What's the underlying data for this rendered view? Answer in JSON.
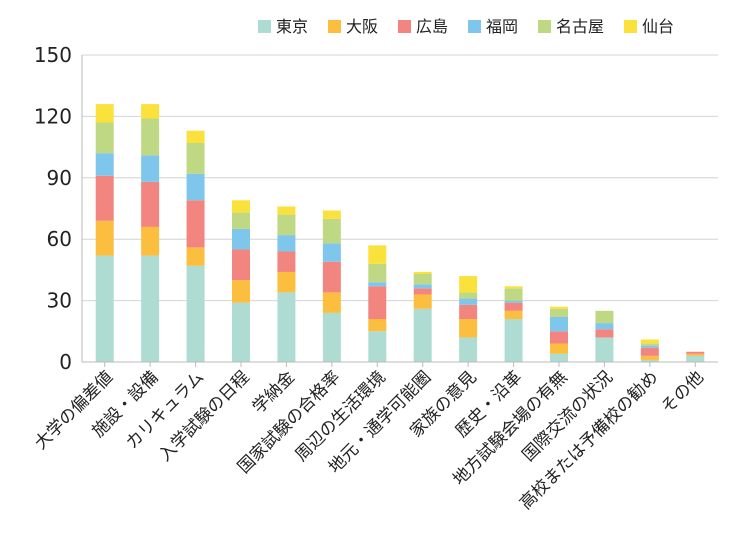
{
  "chart_data": {
    "type": "bar",
    "stacked": true,
    "title": "",
    "xlabel": "",
    "ylabel": "",
    "ylim": [
      0,
      150
    ],
    "yticks": [
      0,
      30,
      60,
      90,
      120,
      150
    ],
    "grid": true,
    "legend_position": "top-right",
    "categories": [
      "大学の偏差値",
      "施設・設備",
      "カリキュラム",
      "入学試験の日程",
      "学納金",
      "国家試験の合格率",
      "周辺の生活環境",
      "地元・通学可能圏",
      "家族の意見",
      "歴史・沿革",
      "地方試験会場の有無",
      "国際交流の状況",
      "高校または予備校の勧め",
      "その他"
    ],
    "series": [
      {
        "name": "東京",
        "color": "#aedcd2",
        "values": [
          52,
          52,
          47,
          29,
          34,
          24,
          15,
          26,
          12,
          21,
          4,
          12,
          1,
          3
        ]
      },
      {
        "name": "大阪",
        "color": "#fbbe3f",
        "values": [
          17,
          14,
          9,
          11,
          10,
          10,
          6,
          7,
          9,
          4,
          5,
          0,
          2,
          1
        ]
      },
      {
        "name": "広島",
        "color": "#f2857f",
        "values": [
          22,
          22,
          23,
          15,
          10,
          15,
          16,
          3,
          7,
          4,
          6,
          4,
          4,
          1
        ]
      },
      {
        "name": "福岡",
        "color": "#7fc6ec",
        "values": [
          11,
          13,
          13,
          10,
          8,
          9,
          2,
          2,
          3,
          1,
          7,
          3,
          1,
          0
        ]
      },
      {
        "name": "名古屋",
        "color": "#bfd884",
        "values": [
          15,
          18,
          15,
          8,
          10,
          12,
          9,
          5,
          3,
          6,
          4,
          6,
          1,
          0
        ]
      },
      {
        "name": "仙台",
        "color": "#fbe13c",
        "values": [
          9,
          7,
          6,
          6,
          4,
          4,
          9,
          1,
          8,
          1,
          1,
          0,
          2,
          0
        ]
      }
    ]
  }
}
